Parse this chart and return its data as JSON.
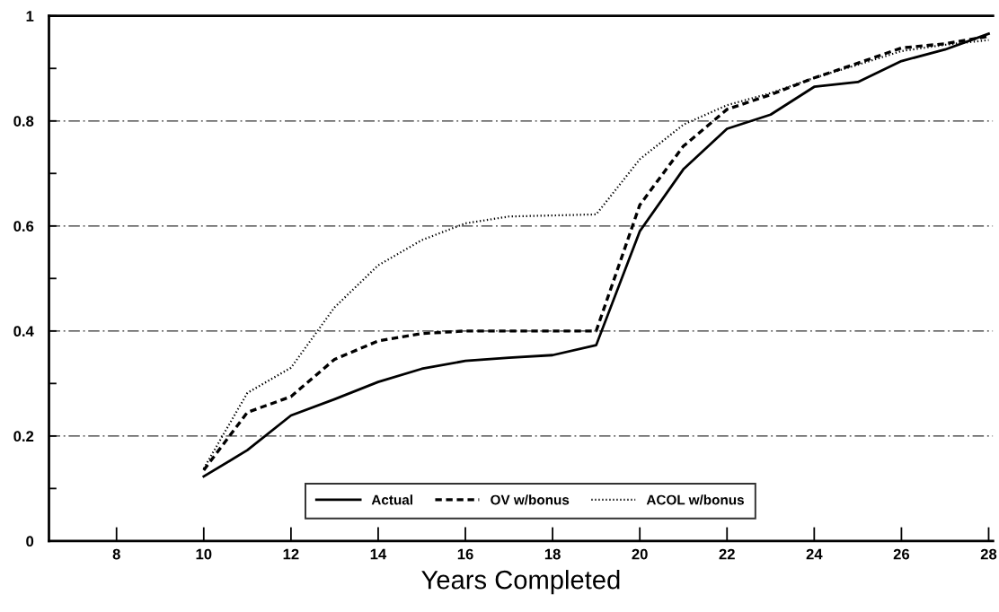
{
  "chart_data": {
    "type": "line",
    "xlabel": "Years Completed",
    "x": [
      10,
      11,
      12,
      13,
      14,
      15,
      16,
      17,
      18,
      19,
      20,
      21,
      22,
      23,
      24,
      25,
      26,
      27,
      28
    ],
    "series": [
      {
        "name": "Actual",
        "color": "#000000",
        "line_style": "solid",
        "values": [
          0.123,
          0.173,
          0.239,
          0.27,
          0.303,
          0.328,
          0.343,
          0.349,
          0.354,
          0.373,
          0.59,
          0.708,
          0.785,
          0.812,
          0.865,
          0.874,
          0.914,
          0.936,
          0.966
        ]
      },
      {
        "name": "OV w/bonus",
        "color": "#000000",
        "line_style": "dashed",
        "values": [
          0.135,
          0.245,
          0.275,
          0.346,
          0.381,
          0.395,
          0.4,
          0.4,
          0.4,
          0.4,
          0.64,
          0.752,
          0.822,
          0.85,
          0.882,
          0.91,
          0.939,
          0.947,
          0.961
        ]
      },
      {
        "name": "ACOL w/bonus",
        "color": "#000000",
        "line_style": "dotted",
        "values": [
          0.138,
          0.282,
          0.33,
          0.445,
          0.525,
          0.573,
          0.605,
          0.618,
          0.62,
          0.622,
          0.727,
          0.793,
          0.83,
          0.853,
          0.882,
          0.907,
          0.933,
          0.945,
          0.954
        ]
      }
    ],
    "xlim": [
      6.45,
      28.1
    ],
    "xticks": [
      8,
      10,
      12,
      14,
      16,
      18,
      20,
      22,
      24,
      26,
      28
    ],
    "ylim": [
      0,
      1
    ],
    "yticks": [
      0,
      {
        "value": 0.1,
        "label": null
      },
      0.2,
      {
        "value": 0.3,
        "label": null
      },
      0.4,
      {
        "value": 0.5,
        "label": null
      },
      0.6,
      {
        "value": 0.7,
        "label": null
      },
      0.8,
      {
        "value": 0.9,
        "label": null
      },
      1
    ],
    "grid": "y",
    "legend": "bottom",
    "marker": "none"
  }
}
